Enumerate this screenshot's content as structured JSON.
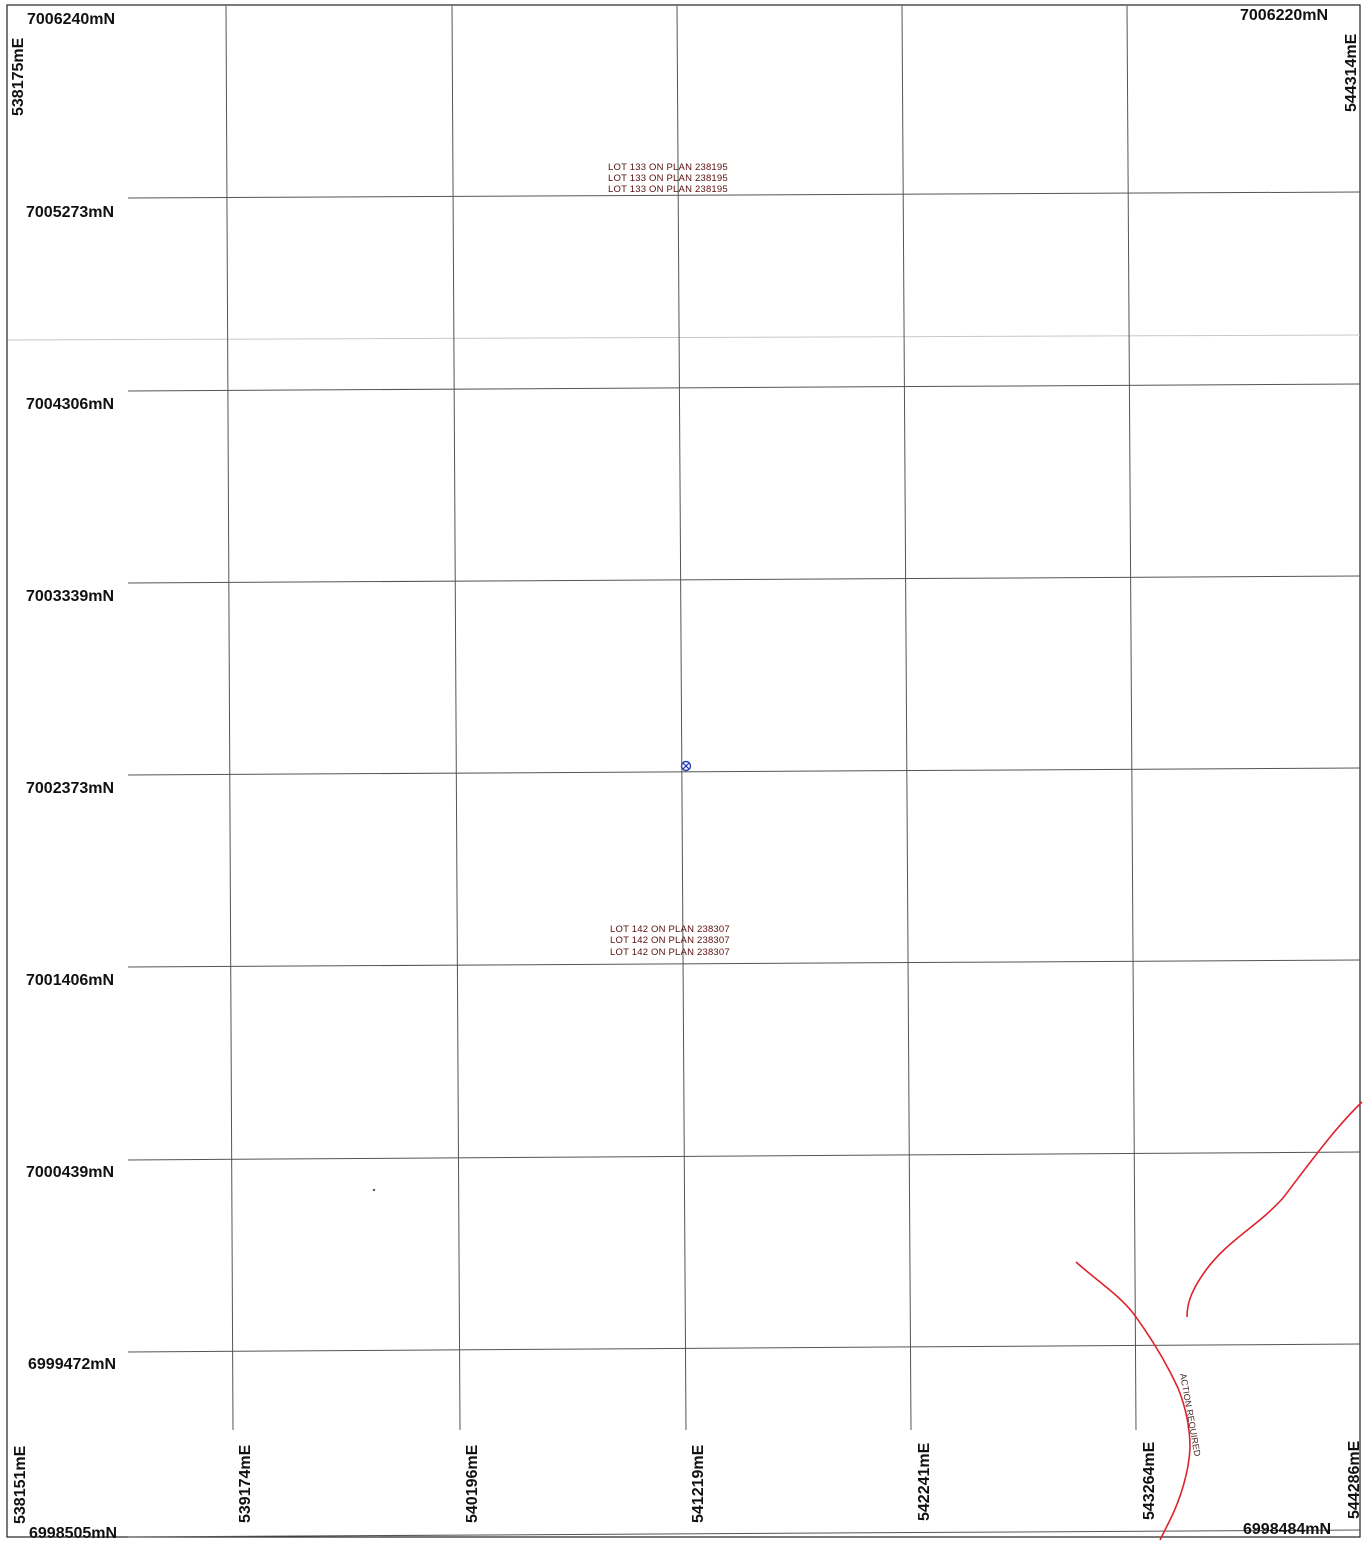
{
  "map": {
    "northing_labels": {
      "top_left": "7006240mN",
      "top_right": "7006220mN",
      "bottom_left": "6998505mN",
      "bottom_right": "6998484mN",
      "left": [
        "7005273mN",
        "7004306mN",
        "7003339mN",
        "7002373mN",
        "7001406mN",
        "7000439mN",
        "6999472mN"
      ]
    },
    "easting_labels": {
      "top_left": "538175mE",
      "top_right": "544314mE",
      "bottom_left": "538151mE",
      "bottom_right": "544286mE",
      "bottom": [
        "539174mE",
        "540196mE",
        "541219mE",
        "542241mE",
        "543264mE"
      ]
    },
    "lot_labels": [
      {
        "text": "LOT 133 ON PLAN 238195"
      },
      {
        "text": "LOT 142 ON PLAN 238307"
      }
    ],
    "red_feature_label": "ACTION REQUIRED",
    "colors": {
      "frame": "#222222",
      "grid": "#555555",
      "lot_text": "#5a1010",
      "red_line": "#e0222e",
      "marker": "#2a3fb8"
    },
    "marker_icon": "crosshair-circle-icon"
  }
}
